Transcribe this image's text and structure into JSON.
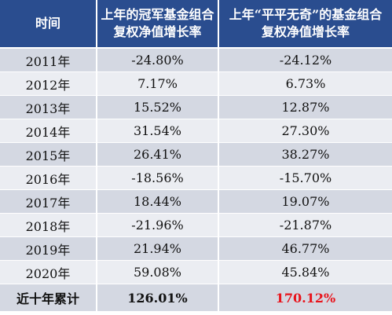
{
  "header": {
    "col_time": "时间",
    "col_champion_line1": "上年的冠军基金组合",
    "col_champion_line2": "复权净值增长率",
    "col_average_line1": "上年“平平无奇”的基金组合",
    "col_average_line2": "复权净值增长率"
  },
  "rows": [
    {
      "year": "2011年",
      "champion": "-24.80%",
      "average": "-24.12%"
    },
    {
      "year": "2012年",
      "champion": "7.17%",
      "average": "6.73%"
    },
    {
      "year": "2013年",
      "champion": "15.52%",
      "average": "12.87%"
    },
    {
      "year": "2014年",
      "champion": "31.54%",
      "average": "27.30%"
    },
    {
      "year": "2015年",
      "champion": "26.41%",
      "average": "38.27%"
    },
    {
      "year": "2016年",
      "champion": "-18.56%",
      "average": "-15.70%"
    },
    {
      "year": "2017年",
      "champion": "18.44%",
      "average": "19.07%"
    },
    {
      "year": "2018年",
      "champion": "-21.96%",
      "average": "-21.87%"
    },
    {
      "year": "2019年",
      "champion": "21.94%",
      "average": "46.77%"
    },
    {
      "year": "2020年",
      "champion": "59.08%",
      "average": "45.84%"
    }
  ],
  "total": {
    "label": "近十年累计",
    "champion": "126.01%",
    "average": "170.12%"
  },
  "colors": {
    "header_bg": "#2a4d8f",
    "row_dark": "#d4d8e2",
    "row_light": "#ebedf2",
    "highlight": "#e8141c"
  }
}
